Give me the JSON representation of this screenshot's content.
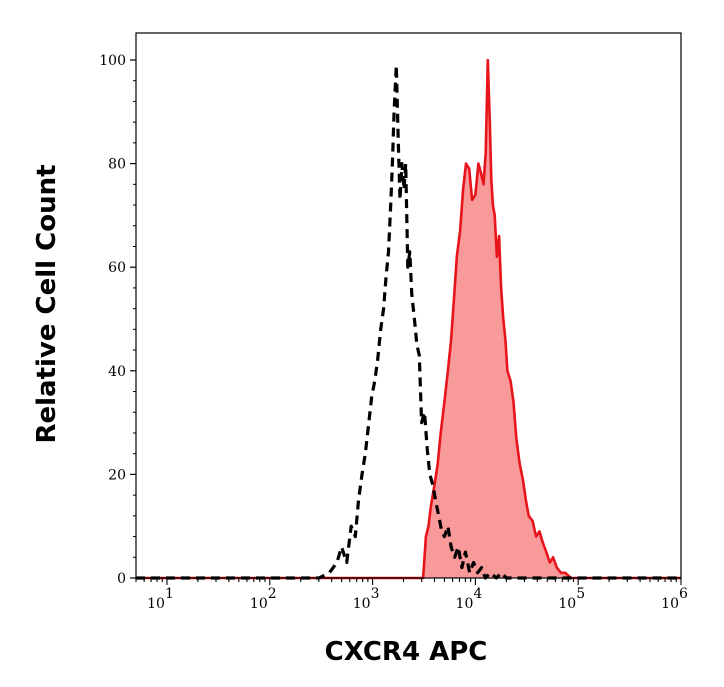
{
  "chart_data": {
    "type": "area",
    "xlabel": "CXCR4  APC",
    "ylabel": "Relative Cell Count",
    "x_scale": "log",
    "xlim": [
      5,
      1000000
    ],
    "ylim": [
      0,
      100
    ],
    "y_ticks": [
      0,
      20,
      40,
      60,
      80,
      100
    ],
    "x_ticks": [
      {
        "base": "10",
        "exp": "1",
        "value": 10
      },
      {
        "base": "10",
        "exp": "2",
        "value": 100
      },
      {
        "base": "10",
        "exp": "3",
        "value": 1000
      },
      {
        "base": "10",
        "exp": "4",
        "value": 10000
      },
      {
        "base": "10",
        "exp": "5",
        "value": 100000
      },
      {
        "base": "10",
        "exp": "6",
        "value": 1000000
      }
    ],
    "grid": false,
    "series": [
      {
        "style": "dashed-line",
        "color": "#000000",
        "x": [
          5,
          300,
          380,
          450,
          500,
          560,
          620,
          680,
          730,
          790,
          850,
          920,
          980,
          1050,
          1120,
          1200,
          1280,
          1350,
          1430,
          1500,
          1560,
          1620,
          1700,
          1780,
          1850,
          1930,
          2020,
          2100,
          2200,
          2300,
          2400,
          2550,
          2700,
          2850,
          3000,
          3200,
          3400,
          3600,
          3850,
          4100,
          4400,
          4700,
          5000,
          5400,
          5800,
          6300,
          6800,
          7400,
          8000,
          8800,
          9600,
          10500,
          11500,
          12500,
          14000,
          16000,
          18000,
          20000,
          1000000
        ],
        "y": [
          0,
          0,
          1,
          3,
          6,
          3,
          10,
          8,
          15,
          20,
          24,
          30,
          35,
          38,
          42,
          48,
          52,
          58,
          63,
          72,
          80,
          90,
          99,
          84,
          73,
          80,
          75,
          80,
          60,
          63,
          55,
          50,
          45,
          43,
          30,
          32,
          25,
          20,
          18,
          15,
          12,
          9,
          8,
          10,
          6,
          4,
          6,
          2,
          5,
          1,
          3,
          1,
          2,
          0,
          1,
          0,
          1,
          0,
          0
        ]
      },
      {
        "style": "filled-area",
        "color": "#e8141c",
        "fill": "#f99a9a",
        "x": [
          5,
          3100,
          3200,
          3300,
          3500,
          3700,
          4000,
          4300,
          4600,
          5000,
          5400,
          5800,
          6200,
          6600,
          7100,
          7600,
          8100,
          8700,
          9300,
          10000,
          10700,
          11400,
          12000,
          12600,
          13200,
          13800,
          14300,
          14800,
          15400,
          16200,
          17000,
          17800,
          18700,
          19600,
          20500,
          22000,
          23500,
          25000,
          27000,
          29000,
          31000,
          33000,
          36000,
          39000,
          42000,
          45000,
          49000,
          53000,
          57000,
          62000,
          68000,
          75000,
          85000,
          95000,
          1000000
        ],
        "y": [
          0,
          0,
          4,
          8,
          10,
          14,
          18,
          22,
          28,
          34,
          40,
          46,
          54,
          62,
          67,
          75,
          80,
          79,
          73,
          74,
          80,
          78,
          76,
          82,
          100,
          88,
          77,
          72,
          70,
          62,
          66,
          56,
          50,
          46,
          40,
          38,
          34,
          27,
          22,
          19,
          15,
          12,
          11,
          8,
          9,
          7,
          5,
          3,
          4,
          2,
          1,
          1,
          0,
          0,
          0
        ]
      }
    ]
  }
}
